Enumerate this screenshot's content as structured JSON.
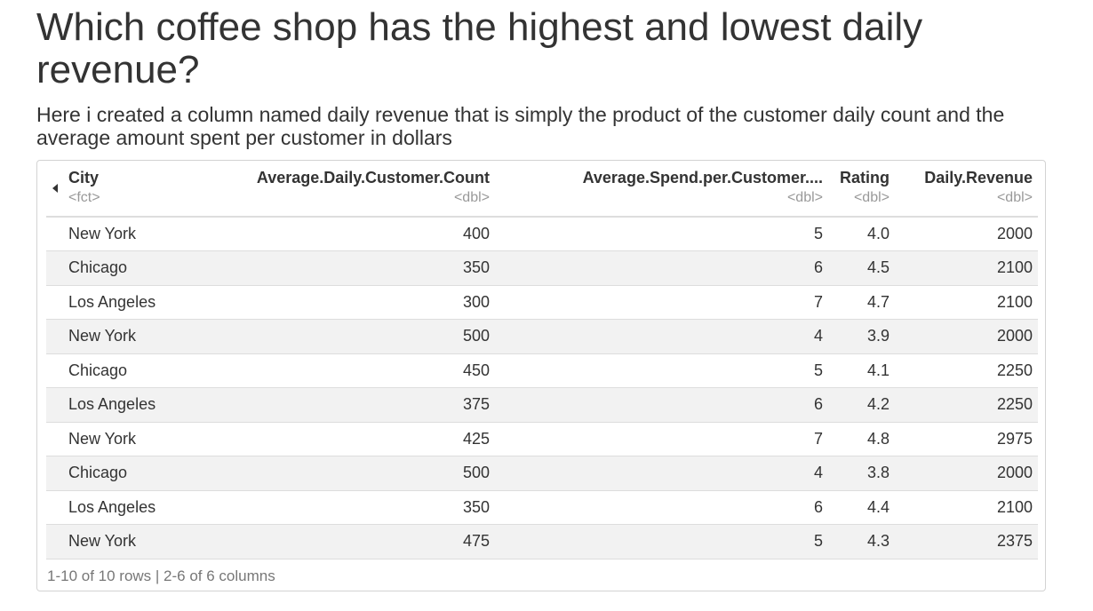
{
  "title": "Which coffee shop has the highest and lowest daily revenue?",
  "subtitle": "Here i created a column named daily revenue that is simply the product of the customer daily count and the average amount spent per customer in dollars",
  "table": {
    "columns": [
      {
        "name": "City",
        "type": "<fct>"
      },
      {
        "name": "Average.Daily.Customer.Count",
        "type": "<dbl>"
      },
      {
        "name": "Average.Spend.per.Customer....",
        "type": "<dbl>"
      },
      {
        "name": "Rating",
        "type": "<dbl>"
      },
      {
        "name": "Daily.Revenue",
        "type": "<dbl>"
      }
    ],
    "rows": [
      [
        "New York",
        "400",
        "5",
        "4.0",
        "2000"
      ],
      [
        "Chicago",
        "350",
        "6",
        "4.5",
        "2100"
      ],
      [
        "Los Angeles",
        "300",
        "7",
        "4.7",
        "2100"
      ],
      [
        "New York",
        "500",
        "4",
        "3.9",
        "2000"
      ],
      [
        "Chicago",
        "450",
        "5",
        "4.1",
        "2250"
      ],
      [
        "Los Angeles",
        "375",
        "6",
        "4.2",
        "2250"
      ],
      [
        "New York",
        "425",
        "7",
        "4.8",
        "2975"
      ],
      [
        "Chicago",
        "500",
        "4",
        "3.8",
        "2000"
      ],
      [
        "Los Angeles",
        "350",
        "6",
        "4.4",
        "2100"
      ],
      [
        "New York",
        "475",
        "5",
        "4.3",
        "2375"
      ]
    ],
    "footer": "1-10 of 10 rows | 2-6 of 6 columns"
  }
}
